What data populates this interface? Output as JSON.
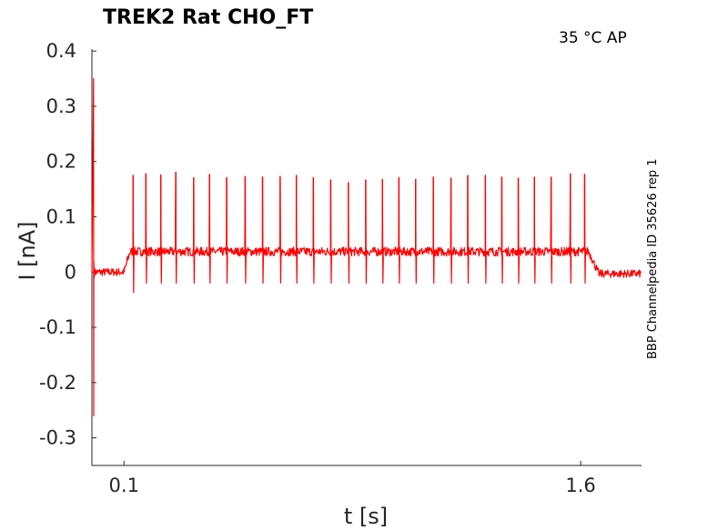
{
  "chart_data": {
    "type": "line",
    "title": "TREK2  Rat  CHO_FT",
    "annotation": "35 °C  AP",
    "side_label": "BBP Channelpedia ID 35626 rep 1",
    "xlabel": "t [s]",
    "ylabel": "I [nA]",
    "xlim": [
      -0.0054,
      1.8
    ],
    "ylim": [
      -0.35,
      0.42
    ],
    "x_ticks": [
      0.1,
      1.6
    ],
    "x_tick_labels": [
      "0.1",
      "1.6"
    ],
    "y_ticks": [
      -0.3,
      -0.2,
      -0.1,
      0,
      0.1,
      0.2,
      0.3,
      0.4
    ],
    "y_tick_labels": [
      "-0.3",
      "-0.2",
      "-0.1",
      "0",
      "0.1",
      "0.2",
      "0.3",
      "0.4"
    ],
    "grid": false,
    "series": [
      {
        "color": "#ff0000",
        "baseline_before": 0.0,
        "plateau": 0.037,
        "baseline_after": -0.003,
        "onset_spike": {
          "x": 0.0,
          "max": 0.35,
          "min": -0.26
        },
        "stim_start": 0.1,
        "rise_end": 0.12,
        "stim_end": 1.626,
        "decay_end": 1.66,
        "spikes": [
          {
            "x": 0.13,
            "peak": 0.175,
            "trough": -0.037
          },
          {
            "x": 0.172,
            "peak": 0.178
          },
          {
            "x": 0.221,
            "peak": 0.176
          },
          {
            "x": 0.27,
            "peak": 0.181
          },
          {
            "x": 0.329,
            "peak": 0.171
          },
          {
            "x": 0.381,
            "peak": 0.177
          },
          {
            "x": 0.437,
            "peak": 0.171
          },
          {
            "x": 0.498,
            "peak": 0.173
          },
          {
            "x": 0.555,
            "peak": 0.172
          },
          {
            "x": 0.613,
            "peak": 0.173
          },
          {
            "x": 0.666,
            "peak": 0.175
          },
          {
            "x": 0.722,
            "peak": 0.171
          },
          {
            "x": 0.779,
            "peak": 0.167
          },
          {
            "x": 0.837,
            "peak": 0.162
          },
          {
            "x": 0.894,
            "peak": 0.167
          },
          {
            "x": 0.949,
            "peak": 0.168
          },
          {
            "x": 1.003,
            "peak": 0.171
          },
          {
            "x": 1.058,
            "peak": 0.168
          },
          {
            "x": 1.116,
            "peak": 0.172
          },
          {
            "x": 1.174,
            "peak": 0.17
          },
          {
            "x": 1.229,
            "peak": 0.175
          },
          {
            "x": 1.287,
            "peak": 0.175
          },
          {
            "x": 1.341,
            "peak": 0.172
          },
          {
            "x": 1.395,
            "peak": 0.17
          },
          {
            "x": 1.448,
            "peak": 0.172
          },
          {
            "x": 1.503,
            "peak": 0.172
          },
          {
            "x": 1.566,
            "peak": 0.178
          },
          {
            "x": 1.613,
            "peak": 0.177
          }
        ]
      }
    ]
  }
}
